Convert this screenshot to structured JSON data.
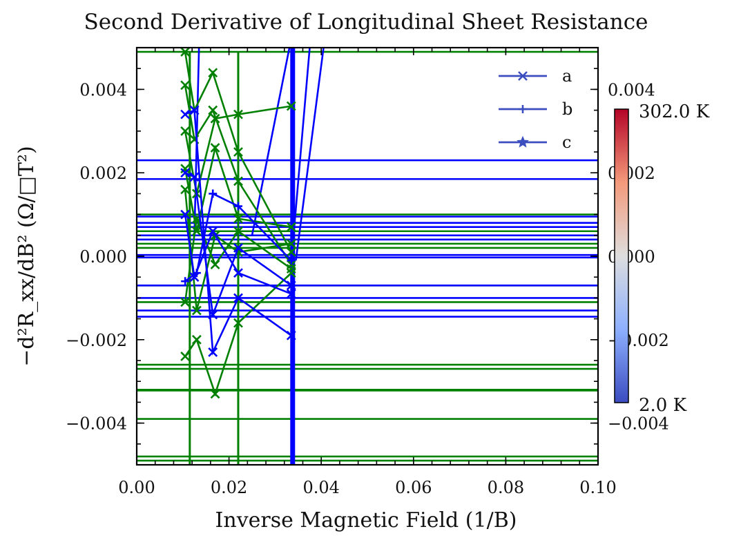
{
  "chart_data": {
    "type": "line",
    "title": "Second Derivative of Longitudinal Sheet Resistance",
    "xlabel": "Inverse Magnetic Field (1/B)",
    "ylabel": "−d²R_xx/dB² (Ω/□T²)",
    "xlim": [
      0.0,
      0.1
    ],
    "ylim": [
      -0.005,
      0.005
    ],
    "x_ticks": [
      0.0,
      0.02,
      0.04,
      0.06,
      0.08,
      0.1
    ],
    "x_tick_labels": [
      "0.00",
      "0.02",
      "0.04",
      "0.06",
      "0.08",
      "0.10"
    ],
    "y_ticks": [
      -0.004,
      -0.002,
      0.0,
      0.002,
      0.004
    ],
    "y_tick_labels": [
      "−0.004",
      "−0.002",
      "0.000",
      "0.002",
      "0.004"
    ],
    "right_axis_tick_labels": [
      "0.004",
      "0.002",
      "0.000",
      "−0.002",
      "−0.004"
    ],
    "grid": false,
    "legend": {
      "placement": "top-right",
      "entries": [
        {
          "label": "a",
          "marker": "x",
          "color": "#3c4ebf"
        },
        {
          "label": "b",
          "marker": "+",
          "color": "#3c4ebf"
        },
        {
          "label": "c",
          "marker": "*",
          "color": "#3c4ebf"
        }
      ]
    },
    "colorbar": {
      "cmap": "coolwarm",
      "min_label": "2.0 K",
      "max_label": "302.0 K",
      "low_color": "#3b4cc0",
      "mid_color": "#dddddd",
      "high_color": "#b40426"
    },
    "series_colors": {
      "green": "#008000",
      "blue": "#0000ff"
    },
    "horizontal_levels": {
      "green": [
        0.0049,
        0.001,
        0.0006,
        0.0003,
        0.0002,
        -0.0007,
        -0.0011,
        -0.0026,
        -0.0027,
        -0.0032,
        -0.00322,
        -0.0039,
        -0.0048,
        -0.0049
      ],
      "blue": [
        0.0023,
        0.00185,
        0.00095,
        0.0008,
        0.0007,
        0.0005,
        0.0004,
        3e-05,
        -3e-05,
        -0.0007,
        -0.001,
        -0.0013,
        -0.00145
      ]
    },
    "series": [
      {
        "color": "green",
        "marker": "x",
        "x": [
          0.0105,
          0.0125,
          0.0165,
          0.022,
          0.0335
        ],
        "y": [
          0.0049,
          0.0035,
          0.0044,
          0.0025,
          0.0001
        ]
      },
      {
        "color": "green",
        "marker": "x",
        "x": [
          0.0105,
          0.0125,
          0.0165,
          0.022,
          0.0335
        ],
        "y": [
          0.0041,
          0.0028,
          0.0035,
          0.0018,
          -0.0002
        ]
      },
      {
        "color": "green",
        "marker": "x",
        "x": [
          0.0105,
          0.013,
          0.017,
          0.022,
          0.0335
        ],
        "y": [
          0.003,
          0.0015,
          0.0033,
          0.0034,
          0.0036
        ]
      },
      {
        "color": "green",
        "marker": "x",
        "x": [
          0.0105,
          0.013,
          0.017,
          0.022,
          0.0335
        ],
        "y": [
          0.0021,
          0.0006,
          0.0026,
          0.0009,
          0.0007
        ]
      },
      {
        "color": "green",
        "marker": "x",
        "x": [
          0.0105,
          0.013,
          0.017,
          0.022,
          0.0335
        ],
        "y": [
          -0.0024,
          -0.002,
          -0.0033,
          -0.0016,
          -0.0004
        ]
      },
      {
        "color": "green",
        "marker": "x",
        "x": [
          0.0105,
          0.013,
          0.017,
          0.022,
          0.0335
        ],
        "y": [
          0.0016,
          -0.0013,
          0.0005,
          0.0001,
          0.0003
        ]
      },
      {
        "color": "green",
        "marker": "x",
        "x": [
          0.0105,
          0.013,
          0.017,
          0.022,
          0.0335
        ],
        "y": [
          -0.0011,
          0.0009,
          -0.0002,
          0.0006,
          -0.0003
        ]
      },
      {
        "color": "blue",
        "marker": "x",
        "x": [
          0.0105,
          0.0125,
          0.0165,
          0.022,
          0.0335
        ],
        "y": [
          0.0034,
          0.0035,
          -0.0023,
          -0.001,
          -0.0019
        ]
      },
      {
        "color": "blue",
        "marker": "x",
        "x": [
          0.0105,
          0.0125,
          0.0165,
          0.022,
          0.0335
        ],
        "y": [
          0.002,
          0.0019,
          -0.0014,
          0.0002,
          -0.0007
        ]
      },
      {
        "color": "blue",
        "marker": "x",
        "x": [
          0.0105,
          0.0125,
          0.0165,
          0.022,
          0.0335
        ],
        "y": [
          0.001,
          -0.0005,
          0.0006,
          -0.0004,
          -0.0009
        ]
      },
      {
        "color": "blue",
        "marker": "+",
        "x": [
          0.0105,
          0.013,
          0.0165,
          0.022,
          0.0335
        ],
        "y": [
          -0.0006,
          -0.0004,
          0.0015,
          0.0012,
          -0.0001
        ]
      }
    ],
    "vertical_segments": [
      {
        "color": "green",
        "x": 0.0115,
        "y": [
          -0.005,
          0.0049
        ]
      },
      {
        "color": "green",
        "x": 0.022,
        "y": [
          -0.005,
          0.0049
        ]
      },
      {
        "color": "blue",
        "x": 0.0335,
        "y": [
          -0.005,
          0.005
        ]
      },
      {
        "color": "blue",
        "x": 0.0338,
        "y": [
          -0.005,
          0.005
        ]
      },
      {
        "color": "blue",
        "x": 0.0341,
        "y": [
          -0.005,
          0.005
        ]
      }
    ],
    "steep_lines": [
      {
        "color": "blue",
        "x": [
          0.0125,
          0.0135
        ],
        "y": [
          0.0005,
          0.005
        ]
      },
      {
        "color": "blue",
        "x": [
          0.025,
          0.0331
        ],
        "y": [
          0.0005,
          0.005
        ]
      },
      {
        "color": "blue",
        "x": [
          0.034,
          0.0375
        ],
        "y": [
          0.0005,
          0.005
        ]
      },
      {
        "color": "blue",
        "x": [
          0.0345,
          0.0405
        ],
        "y": [
          -0.0001,
          0.005
        ]
      }
    ]
  }
}
